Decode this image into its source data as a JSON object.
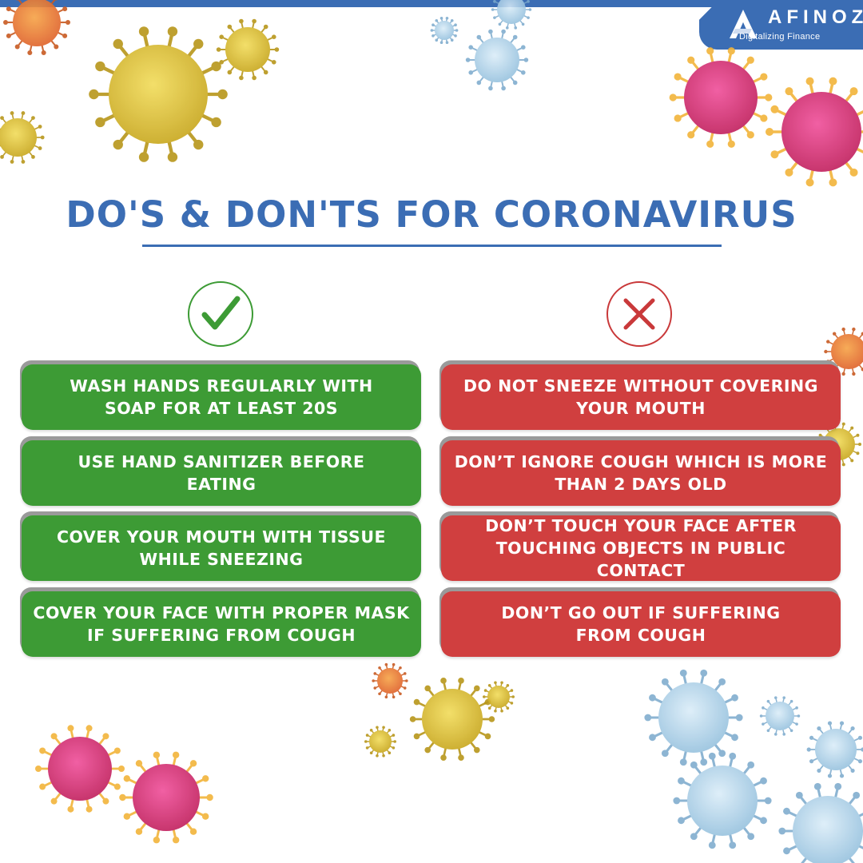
{
  "brand": {
    "name": "AFINOZ",
    "tagline": "Digitalizing Finance",
    "color": "#3b6db4"
  },
  "title": "DO'S & DON'TS FOR CORONAVIRUS",
  "dos": {
    "icon": "check-mark-icon",
    "color": "#3d9b35",
    "items": [
      "WASH HANDS REGULARLY WITH\nSOAP FOR AT LEAST 20S",
      "USE HAND SANITIZER BEFORE\nEATING",
      "COVER YOUR MOUTH WITH TISSUE\nWHILE SNEEZING",
      "COVER YOUR FACE WITH PROPER MASK\nIF SUFFERING FROM COUGH"
    ]
  },
  "donts": {
    "icon": "cross-mark-icon",
    "color": "#d03f3f",
    "items": [
      "DO NOT SNEEZE WITHOUT COVERING\nYOUR MOUTH",
      "DON’T IGNORE COUGH WHICH IS MORE\nTHAN 2 DAYS OLD",
      "DON’T TOUCH YOUR FACE AFTER\nTOUCHING OBJECTS IN PUBLIC CONTACT",
      "DON’T GO OUT IF SUFFERING\nFROM COUGH"
    ]
  }
}
